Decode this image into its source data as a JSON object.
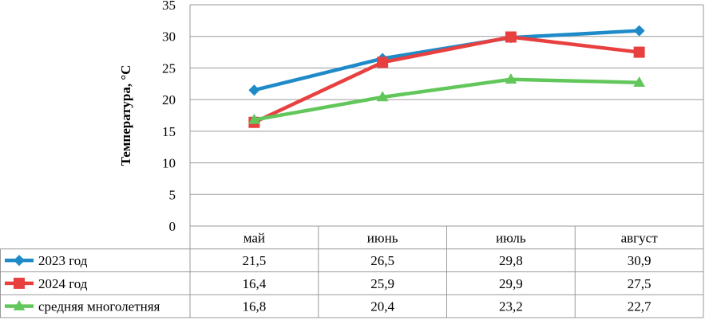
{
  "chart_data": {
    "type": "line",
    "title": "",
    "xlabel": "",
    "ylabel": "Температура, °C",
    "ylim": [
      0,
      35
    ],
    "y_ticks": [
      "0",
      "5",
      "10",
      "15",
      "20",
      "25",
      "30",
      "35"
    ],
    "grid": true,
    "legend": "data-table-left",
    "categories": [
      "май",
      "июнь",
      "июль",
      "август"
    ],
    "series": [
      {
        "name": "2023 год",
        "color": "#1f8ac8",
        "marker": "diamond",
        "values": [
          21.5,
          26.5,
          29.8,
          30.9
        ],
        "labels": [
          "21,5",
          "26,5",
          "29,8",
          "30,9"
        ]
      },
      {
        "name": "2024 год",
        "color": "#e8403f",
        "marker": "square",
        "values": [
          16.4,
          25.9,
          29.9,
          27.5
        ],
        "labels": [
          "16,4",
          "25,9",
          "29,9",
          "27,5"
        ]
      },
      {
        "name": "средняя многолетняя",
        "color": "#62c75a",
        "marker": "triangle",
        "values": [
          16.8,
          20.4,
          23.2,
          22.7
        ],
        "labels": [
          "16,8",
          "20,4",
          "23,2",
          "22,7"
        ]
      }
    ]
  }
}
